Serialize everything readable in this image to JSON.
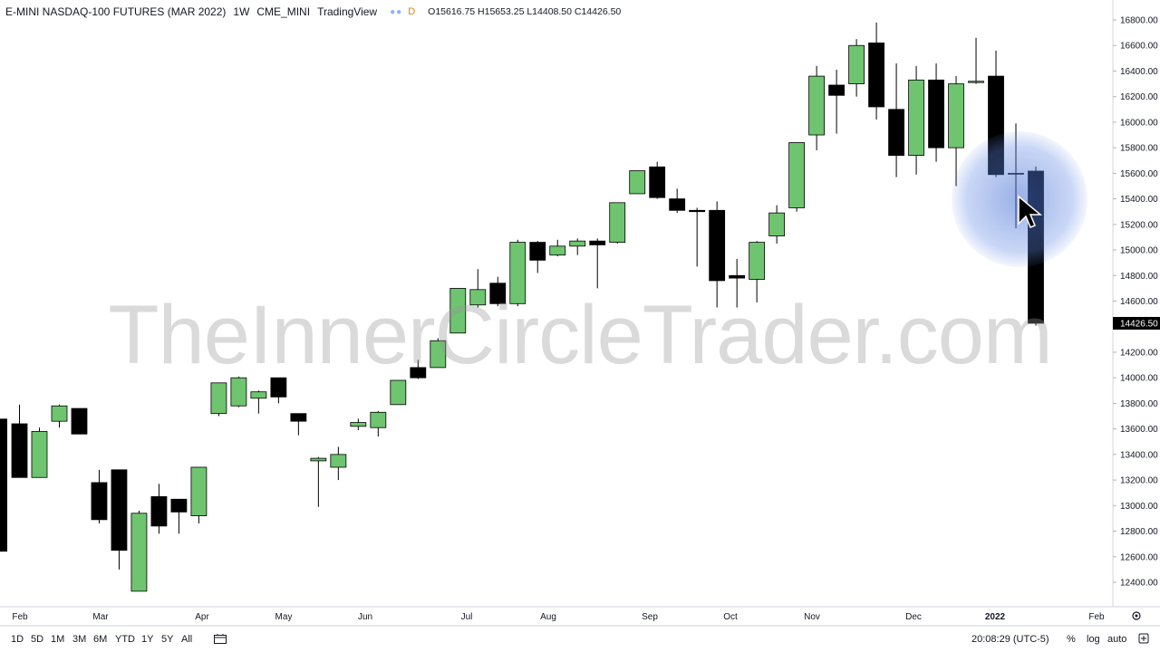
{
  "header": {
    "symbol": "E-MINI NASDAQ-100 FUTURES (MAR 2022)",
    "timeframe": "1W",
    "exchange": "CME_MINI",
    "brand": "TradingView",
    "badge": "D",
    "ohlc": "O15616.75  H15653.25  L14408.50  C14426.50"
  },
  "watermark": "TheInnerCircleTrader.com",
  "colors": {
    "up": "#6fc46f",
    "down": "#000000",
    "last_price_bg": "#000000"
  },
  "chart_data": {
    "type": "candlestick",
    "timeframe": "1W",
    "y_axis": {
      "ticks": [
        12400,
        12600,
        12800,
        13000,
        13200,
        13400,
        13600,
        13800,
        14000,
        14200,
        14400,
        14600,
        14800,
        15000,
        15200,
        15400,
        15600,
        15800,
        16000,
        16200,
        16400,
        16600,
        16800
      ]
    },
    "last_price": "14426.50",
    "x_axis": {
      "labels": [
        "Feb",
        "Mar",
        "Apr",
        "May",
        "Jun",
        "Jul",
        "Aug",
        "Sep",
        "Oct",
        "Nov",
        "Dec",
        "2022",
        "Feb"
      ]
    },
    "candles": [
      {
        "o": 13640,
        "h": 13790,
        "l": 13220,
        "c": 13220
      },
      {
        "o": 13220,
        "h": 13610,
        "l": 13220,
        "c": 13580
      },
      {
        "o": 13660,
        "h": 13790,
        "l": 13610,
        "c": 13780
      },
      {
        "o": 13760,
        "h": 13760,
        "l": 13560,
        "c": 13560
      },
      {
        "o": 13180,
        "h": 13280,
        "l": 12860,
        "c": 12890
      },
      {
        "o": 13280,
        "h": 13280,
        "l": 12500,
        "c": 12650
      },
      {
        "o": 12330,
        "h": 12960,
        "l": 12330,
        "c": 12940
      },
      {
        "o": 13070,
        "h": 13170,
        "l": 12780,
        "c": 12840
      },
      {
        "o": 13050,
        "h": 13050,
        "l": 12780,
        "c": 12950
      },
      {
        "o": 12920,
        "h": 13300,
        "l": 12860,
        "c": 13300
      },
      {
        "o": 13720,
        "h": 13950,
        "l": 13700,
        "c": 13960
      },
      {
        "o": 13780,
        "h": 14010,
        "l": 13770,
        "c": 14000
      },
      {
        "o": 13840,
        "h": 13900,
        "l": 13720,
        "c": 13890
      },
      {
        "o": 14000,
        "h": 14000,
        "l": 13800,
        "c": 13850
      },
      {
        "o": 13720,
        "h": 13720,
        "l": 13550,
        "c": 13660
      },
      {
        "o": 13350,
        "h": 13380,
        "l": 12990,
        "c": 13370
      },
      {
        "o": 13300,
        "h": 13460,
        "l": 13200,
        "c": 13400
      },
      {
        "o": 13620,
        "h": 13680,
        "l": 13590,
        "c": 13650
      },
      {
        "o": 13610,
        "h": 13740,
        "l": 13540,
        "c": 13730
      },
      {
        "o": 13790,
        "h": 13980,
        "l": 13790,
        "c": 13980
      },
      {
        "o": 14080,
        "h": 14140,
        "l": 13990,
        "c": 14000
      },
      {
        "o": 14080,
        "h": 14310,
        "l": 14080,
        "c": 14290
      },
      {
        "o": 14350,
        "h": 14700,
        "l": 14350,
        "c": 14700
      },
      {
        "o": 14570,
        "h": 14850,
        "l": 14550,
        "c": 14690
      },
      {
        "o": 14740,
        "h": 14790,
        "l": 14560,
        "c": 14580
      },
      {
        "o": 14580,
        "h": 15080,
        "l": 14560,
        "c": 15060
      },
      {
        "o": 15060,
        "h": 15070,
        "l": 14820,
        "c": 14920
      },
      {
        "o": 14960,
        "h": 15080,
        "l": 14950,
        "c": 15030
      },
      {
        "o": 15030,
        "h": 15090,
        "l": 14960,
        "c": 15070
      },
      {
        "o": 15070,
        "h": 15090,
        "l": 14700,
        "c": 15040
      },
      {
        "o": 15060,
        "h": 15370,
        "l": 15050,
        "c": 15370
      },
      {
        "o": 15440,
        "h": 15610,
        "l": 15440,
        "c": 15620
      },
      {
        "o": 15650,
        "h": 15690,
        "l": 15400,
        "c": 15410
      },
      {
        "o": 15400,
        "h": 15480,
        "l": 15290,
        "c": 15310
      },
      {
        "o": 15310,
        "h": 15330,
        "l": 14870,
        "c": 15300
      },
      {
        "o": 15310,
        "h": 15380,
        "l": 14550,
        "c": 14760
      },
      {
        "o": 14800,
        "h": 14930,
        "l": 14550,
        "c": 14780
      },
      {
        "o": 14770,
        "h": 15070,
        "l": 14590,
        "c": 15060
      },
      {
        "o": 15110,
        "h": 15350,
        "l": 15050,
        "c": 15290
      },
      {
        "o": 15330,
        "h": 15830,
        "l": 15300,
        "c": 15840
      },
      {
        "o": 15900,
        "h": 16440,
        "l": 15780,
        "c": 16360
      },
      {
        "o": 16290,
        "h": 16410,
        "l": 15910,
        "c": 16210
      },
      {
        "o": 16300,
        "h": 16650,
        "l": 16200,
        "c": 16600
      },
      {
        "o": 16620,
        "h": 16780,
        "l": 16020,
        "c": 16120
      },
      {
        "o": 16100,
        "h": 16460,
        "l": 15570,
        "c": 15740
      },
      {
        "o": 15740,
        "h": 16440,
        "l": 15590,
        "c": 16330
      },
      {
        "o": 16330,
        "h": 16460,
        "l": 15690,
        "c": 15800
      },
      {
        "o": 15800,
        "h": 16360,
        "l": 15500,
        "c": 16300
      },
      {
        "o": 16310,
        "h": 16660,
        "l": 16300,
        "c": 16320
      },
      {
        "o": 16360,
        "h": 16560,
        "l": 15570,
        "c": 15590
      },
      {
        "o": 15600,
        "h": 15990,
        "l": 15170,
        "c": 15600
      },
      {
        "o": 15617,
        "h": 15653,
        "l": 14409,
        "c": 14427
      }
    ]
  },
  "bottom_bar": {
    "ranges": [
      "1D",
      "5D",
      "1M",
      "3M",
      "6M",
      "YTD",
      "1Y",
      "5Y",
      "All"
    ],
    "clock": "20:08:29 (UTC-5)",
    "percent": "%",
    "log": "log",
    "auto": "auto"
  }
}
